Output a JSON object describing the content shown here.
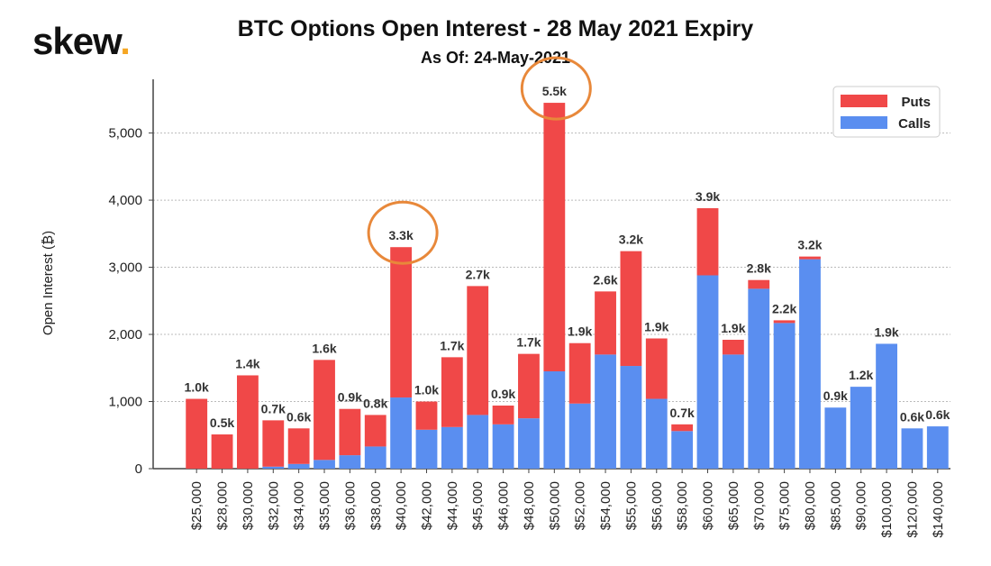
{
  "brand": {
    "name": "skew",
    "dot": "."
  },
  "colors": {
    "puts": "#f04848",
    "calls": "#5a8ef0",
    "highlight": "#e8883a",
    "grid": "#bbbbbb"
  },
  "chart_data": {
    "type": "bar",
    "stacked": true,
    "title": "BTC Options Open Interest - 28 May 2021 Expiry",
    "subtitle": "As Of: 24-May-2021",
    "ylabel": "Open Interest (₿)",
    "xlabel": "",
    "ylim": [
      0,
      5800
    ],
    "yticks": [
      0,
      1000,
      2000,
      3000,
      4000,
      5000
    ],
    "ytick_labels": [
      "0",
      "1,000",
      "2,000",
      "3,000",
      "4,000",
      "5,000"
    ],
    "grid": true,
    "legend_position": "top-right",
    "categories": [
      "$25,000",
      "$28,000",
      "$30,000",
      "$32,000",
      "$34,000",
      "$35,000",
      "$36,000",
      "$38,000",
      "$40,000",
      "$42,000",
      "$44,000",
      "$45,000",
      "$46,000",
      "$48,000",
      "$50,000",
      "$52,000",
      "$54,000",
      "$55,000",
      "$56,000",
      "$58,000",
      "$60,000",
      "$65,000",
      "$70,000",
      "$75,000",
      "$80,000",
      "$85,000",
      "$90,000",
      "$100,000",
      "$120,000",
      "$140,000"
    ],
    "series": [
      {
        "name": "Calls",
        "values": [
          0,
          0,
          0,
          30,
          70,
          130,
          200,
          330,
          1060,
          580,
          620,
          800,
          660,
          750,
          1450,
          970,
          1700,
          1530,
          1040,
          560,
          2880,
          1700,
          2680,
          2170,
          3120,
          910,
          1220,
          1860,
          600,
          630
        ]
      },
      {
        "name": "Puts",
        "values": [
          1040,
          510,
          1390,
          690,
          530,
          1490,
          690,
          470,
          2240,
          420,
          1040,
          1920,
          280,
          960,
          4000,
          900,
          940,
          1710,
          900,
          100,
          1000,
          220,
          130,
          40,
          40,
          0,
          0,
          0,
          0,
          0
        ]
      }
    ],
    "data_labels": [
      "1.0k",
      "0.5k",
      "1.4k",
      "0.7k",
      "0.6k",
      "1.6k",
      "0.9k",
      "0.8k",
      "3.3k",
      "1.0k",
      "1.7k",
      "2.7k",
      "0.9k",
      "1.7k",
      "5.5k",
      "1.9k",
      "2.6k",
      "3.2k",
      "1.9k",
      "0.7k",
      "3.9k",
      "1.9k",
      "2.8k",
      "2.2k",
      "3.2k",
      "0.9k",
      "1.2k",
      "1.9k",
      "0.6k",
      "0.6k"
    ],
    "annotations": [
      {
        "type": "circle",
        "category": "$40,000"
      },
      {
        "type": "circle",
        "category": "$50,000"
      }
    ]
  }
}
